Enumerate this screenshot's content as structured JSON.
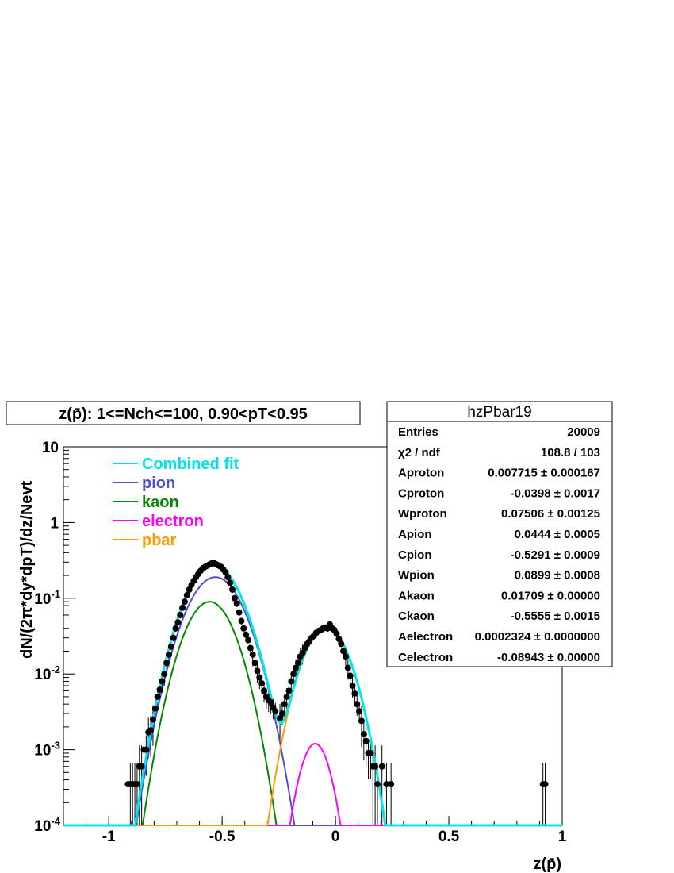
{
  "chart_data": {
    "type": "scatter",
    "title": "z(p̄): 1<=Nch<=100, 0.90<pT<0.95",
    "xlabel": "z(p̄)",
    "ylabel": "dN/(2π*dy*dpT)/dz/Nevt",
    "xlim": [
      -1.2,
      1.0
    ],
    "ylim": [
      0.0001,
      10
    ],
    "yscale": "log",
    "grid": false,
    "legend_position": "top-left",
    "x_ticks": [
      -1,
      -0.5,
      0,
      0.5,
      1
    ],
    "x_tick_labels": [
      "-1",
      "-0.5",
      "0",
      "0.5",
      "1"
    ],
    "y_ticks": [
      0.0001,
      0.001,
      0.01,
      0.1,
      1,
      10
    ],
    "y_tick_labels": [
      {
        "base": "10",
        "exp": "-4"
      },
      {
        "base": "10",
        "exp": "-3"
      },
      {
        "base": "10",
        "exp": "-2"
      },
      {
        "base": "10",
        "exp": "-1"
      },
      {
        "base": "1",
        "exp": ""
      },
      {
        "base": "10",
        "exp": ""
      }
    ],
    "legend": [
      {
        "name": "Combined fit",
        "color": "#00e5e5"
      },
      {
        "name": "pion",
        "color": "#5050cc"
      },
      {
        "name": "kaon",
        "color": "#008800"
      },
      {
        "name": "electron",
        "color": "#ff00ff"
      },
      {
        "name": "pbar",
        "color": "#ff9900"
      }
    ],
    "stats": {
      "name": "hzPbar19",
      "rows": [
        {
          "label": "Entries",
          "value": "20009"
        },
        {
          "label": "χ2 / ndf",
          "value": "108.8 / 103"
        },
        {
          "label": "Aproton",
          "value": "0.007715 ± 0.000167"
        },
        {
          "label": "Cproton",
          "value": "-0.0398 ± 0.0017"
        },
        {
          "label": "Wproton",
          "value": "0.07506 ± 0.00125"
        },
        {
          "label": "Apion",
          "value": "0.0444 ± 0.0005"
        },
        {
          "label": "Cpion",
          "value": "-0.5291 ± 0.0009"
        },
        {
          "label": "Wpion",
          "value": "0.0899 ± 0.0008"
        },
        {
          "label": "Akaon",
          "value": "0.01709 ± 0.00000"
        },
        {
          "label": "Ckaon",
          "value": "-0.5555 ± 0.0015"
        },
        {
          "label": "Aelectron",
          "value": "0.0002324 ± 0.0000000"
        },
        {
          "label": "Celectron",
          "value": "-0.08943 ± 0.00000"
        }
      ]
    },
    "points": [
      {
        "x": -0.915,
        "y": 0.00035
      },
      {
        "x": -0.905,
        "y": 0.00035
      },
      {
        "x": -0.895,
        "y": 0.00035
      },
      {
        "x": -0.885,
        "y": 0.00035
      },
      {
        "x": -0.875,
        "y": 0.00035
      },
      {
        "x": -0.865,
        "y": 0.0006
      },
      {
        "x": -0.855,
        "y": 0.0006
      },
      {
        "x": -0.845,
        "y": 0.001
      },
      {
        "x": -0.835,
        "y": 0.001
      },
      {
        "x": -0.825,
        "y": 0.0017
      },
      {
        "x": -0.815,
        "y": 0.0018
      },
      {
        "x": -0.805,
        "y": 0.0025
      },
      {
        "x": -0.795,
        "y": 0.0035
      },
      {
        "x": -0.785,
        "y": 0.005
      },
      {
        "x": -0.775,
        "y": 0.0062
      },
      {
        "x": -0.765,
        "y": 0.008
      },
      {
        "x": -0.755,
        "y": 0.01
      },
      {
        "x": -0.745,
        "y": 0.014
      },
      {
        "x": -0.735,
        "y": 0.018
      },
      {
        "x": -0.725,
        "y": 0.023
      },
      {
        "x": -0.715,
        "y": 0.03
      },
      {
        "x": -0.705,
        "y": 0.04
      },
      {
        "x": -0.695,
        "y": 0.048
      },
      {
        "x": -0.685,
        "y": 0.06
      },
      {
        "x": -0.675,
        "y": 0.075
      },
      {
        "x": -0.665,
        "y": 0.09
      },
      {
        "x": -0.655,
        "y": 0.11
      },
      {
        "x": -0.645,
        "y": 0.13
      },
      {
        "x": -0.635,
        "y": 0.15
      },
      {
        "x": -0.625,
        "y": 0.17
      },
      {
        "x": -0.615,
        "y": 0.19
      },
      {
        "x": -0.605,
        "y": 0.21
      },
      {
        "x": -0.595,
        "y": 0.23
      },
      {
        "x": -0.585,
        "y": 0.25
      },
      {
        "x": -0.575,
        "y": 0.26
      },
      {
        "x": -0.565,
        "y": 0.27
      },
      {
        "x": -0.555,
        "y": 0.28
      },
      {
        "x": -0.545,
        "y": 0.29
      },
      {
        "x": -0.535,
        "y": 0.29
      },
      {
        "x": -0.525,
        "y": 0.28
      },
      {
        "x": -0.515,
        "y": 0.27
      },
      {
        "x": -0.505,
        "y": 0.26
      },
      {
        "x": -0.495,
        "y": 0.24
      },
      {
        "x": -0.485,
        "y": 0.22
      },
      {
        "x": -0.475,
        "y": 0.19
      },
      {
        "x": -0.465,
        "y": 0.16
      },
      {
        "x": -0.455,
        "y": 0.13
      },
      {
        "x": -0.445,
        "y": 0.1
      },
      {
        "x": -0.435,
        "y": 0.085
      },
      {
        "x": -0.425,
        "y": 0.065
      },
      {
        "x": -0.415,
        "y": 0.05
      },
      {
        "x": -0.405,
        "y": 0.04
      },
      {
        "x": -0.395,
        "y": 0.033
      },
      {
        "x": -0.385,
        "y": 0.028
      },
      {
        "x": -0.375,
        "y": 0.022
      },
      {
        "x": -0.365,
        "y": 0.018
      },
      {
        "x": -0.355,
        "y": 0.014
      },
      {
        "x": -0.345,
        "y": 0.011
      },
      {
        "x": -0.335,
        "y": 0.009
      },
      {
        "x": -0.325,
        "y": 0.0075
      },
      {
        "x": -0.315,
        "y": 0.006
      },
      {
        "x": -0.305,
        "y": 0.005
      },
      {
        "x": -0.295,
        "y": 0.0045
      },
      {
        "x": -0.285,
        "y": 0.0042
      },
      {
        "x": -0.275,
        "y": 0.0036
      },
      {
        "x": -0.265,
        "y": 0.0032
      },
      {
        "x": -0.245,
        "y": 0.0026
      },
      {
        "x": -0.235,
        "y": 0.003
      },
      {
        "x": -0.225,
        "y": 0.004
      },
      {
        "x": -0.215,
        "y": 0.005
      },
      {
        "x": -0.205,
        "y": 0.006
      },
      {
        "x": -0.195,
        "y": 0.008
      },
      {
        "x": -0.185,
        "y": 0.01
      },
      {
        "x": -0.175,
        "y": 0.012
      },
      {
        "x": -0.165,
        "y": 0.014
      },
      {
        "x": -0.155,
        "y": 0.017
      },
      {
        "x": -0.145,
        "y": 0.019
      },
      {
        "x": -0.135,
        "y": 0.022
      },
      {
        "x": -0.125,
        "y": 0.025
      },
      {
        "x": -0.115,
        "y": 0.027
      },
      {
        "x": -0.105,
        "y": 0.03
      },
      {
        "x": -0.095,
        "y": 0.032
      },
      {
        "x": -0.085,
        "y": 0.035
      },
      {
        "x": -0.075,
        "y": 0.037
      },
      {
        "x": -0.065,
        "y": 0.038
      },
      {
        "x": -0.055,
        "y": 0.04
      },
      {
        "x": -0.045,
        "y": 0.041
      },
      {
        "x": -0.035,
        "y": 0.04
      },
      {
        "x": -0.025,
        "y": 0.045
      },
      {
        "x": -0.015,
        "y": 0.04
      },
      {
        "x": -0.005,
        "y": 0.038
      },
      {
        "x": 0.005,
        "y": 0.034
      },
      {
        "x": 0.015,
        "y": 0.029
      },
      {
        "x": 0.025,
        "y": 0.025
      },
      {
        "x": 0.035,
        "y": 0.02
      },
      {
        "x": 0.045,
        "y": 0.017
      },
      {
        "x": 0.055,
        "y": 0.012
      },
      {
        "x": 0.065,
        "y": 0.0095
      },
      {
        "x": 0.075,
        "y": 0.007
      },
      {
        "x": 0.085,
        "y": 0.0055
      },
      {
        "x": 0.095,
        "y": 0.004
      },
      {
        "x": 0.105,
        "y": 0.0032
      },
      {
        "x": 0.115,
        "y": 0.0024
      },
      {
        "x": 0.125,
        "y": 0.0016
      },
      {
        "x": 0.135,
        "y": 0.0013
      },
      {
        "x": 0.145,
        "y": 0.0009
      },
      {
        "x": 0.155,
        "y": 0.0009
      },
      {
        "x": 0.165,
        "y": 0.0006
      },
      {
        "x": 0.175,
        "y": 0.0006
      },
      {
        "x": 0.185,
        "y": 0.00035
      },
      {
        "x": 0.205,
        "y": 0.0006
      },
      {
        "x": 0.225,
        "y": 0.00035
      },
      {
        "x": 0.245,
        "y": 0.00035
      },
      {
        "x": 0.915,
        "y": 0.00035
      },
      {
        "x": 0.925,
        "y": 0.00035
      }
    ],
    "components": {
      "pion": {
        "A": 0.19,
        "C": -0.53,
        "W": 0.0899
      },
      "kaon": {
        "A": 0.09,
        "C": -0.5555,
        "W": 0.08
      },
      "electron": {
        "A": 0.0012,
        "C": -0.08943,
        "W": 0.05
      },
      "pbar": {
        "A": 0.04,
        "C": -0.0398,
        "W": 0.07506
      }
    }
  }
}
